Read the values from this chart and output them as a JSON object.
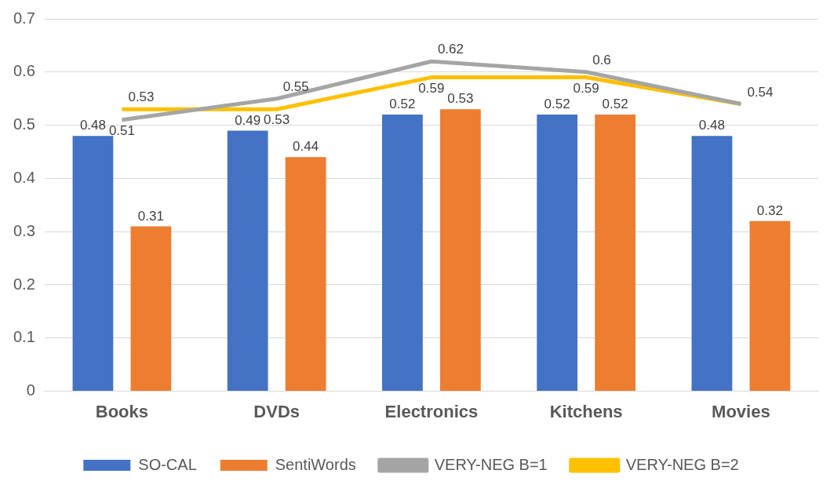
{
  "chart_data": {
    "type": "bar",
    "categories": [
      "Books",
      "DVDs",
      "Electronics",
      "Kitchens",
      "Movies"
    ],
    "series": [
      {
        "name": "SO-CAL",
        "color": "#4472c4",
        "values": [
          0.48,
          0.49,
          0.52,
          0.52,
          0.48
        ],
        "value_labels": [
          "0.48",
          "0.49",
          "0.52",
          "0.52",
          "0.48"
        ]
      },
      {
        "name": "SentiWords",
        "color": "#ed7d31",
        "values": [
          0.31,
          0.44,
          0.53,
          0.52,
          0.32
        ],
        "value_labels": [
          "0.31",
          "0.44",
          "0.53",
          "0.52",
          "0.32"
        ]
      },
      {
        "name": "VERY-NEG B=1",
        "type": "line",
        "color": "#a5a5a5",
        "values": [
          0.51,
          0.55,
          0.62,
          0.6,
          0.54
        ],
        "value_labels": [
          "0.51",
          "0.55",
          "0.62",
          "0.6",
          "0.54"
        ]
      },
      {
        "name": "VERY-NEG B=2",
        "type": "line",
        "color": "#ffc000",
        "values": [
          0.53,
          0.53,
          0.59,
          0.59,
          0.54
        ],
        "value_labels": [
          "0.53",
          "0.53",
          "0.59",
          "0.59",
          null
        ]
      }
    ],
    "ylim": [
      0,
      0.7
    ],
    "yticks": [
      0,
      0.1,
      0.2,
      0.3,
      0.4,
      0.5,
      0.6,
      0.7
    ],
    "grid": "y",
    "legend": "bottom",
    "marker": "none"
  }
}
